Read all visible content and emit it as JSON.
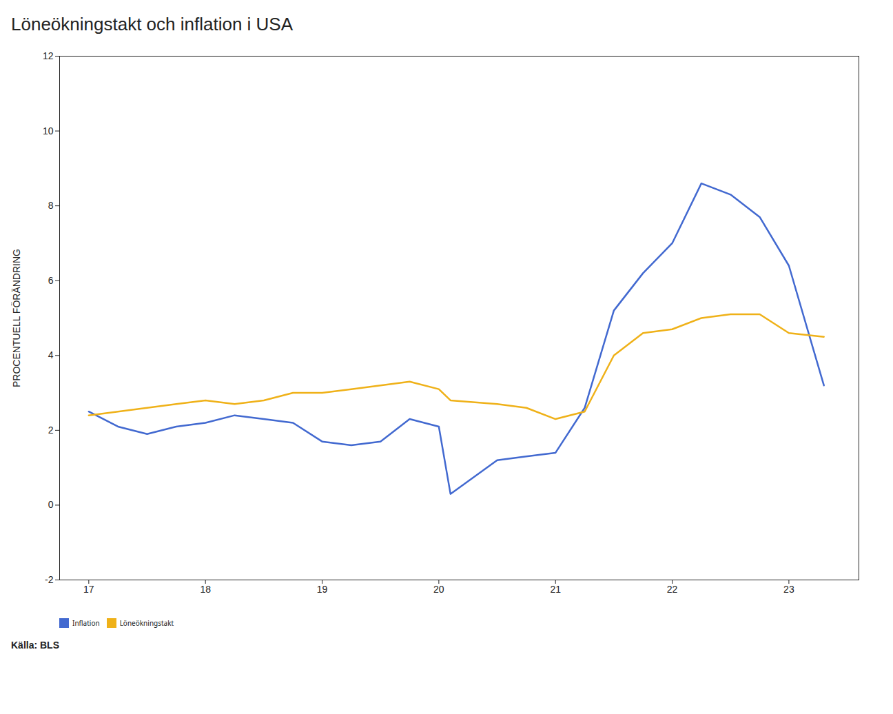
{
  "chart_data": {
    "type": "line",
    "title": "Löneökningstakt och inflation i USA",
    "ylabel": "PROCENTUELL FÖRÄNDRING",
    "annotations": [
      "Källa: BLS"
    ],
    "x": [
      17.0,
      17.25,
      17.5,
      17.75,
      18.0,
      18.25,
      18.5,
      18.75,
      19.0,
      19.25,
      19.5,
      19.75,
      20.0,
      20.1,
      20.5,
      20.75,
      21.0,
      21.25,
      21.5,
      21.75,
      22.0,
      22.25,
      22.5,
      22.75,
      23.0,
      23.3
    ],
    "series": [
      {
        "name": "Inflation",
        "values": [
          2.5,
          2.1,
          1.9,
          2.1,
          2.2,
          2.4,
          2.3,
          2.2,
          1.7,
          1.6,
          1.7,
          2.3,
          2.1,
          0.3,
          1.2,
          1.3,
          1.4,
          2.6,
          5.2,
          6.2,
          7.0,
          8.6,
          8.3,
          7.7,
          6.4,
          3.2
        ]
      },
      {
        "name": "Löneökningstakt",
        "values": [
          2.4,
          2.5,
          2.6,
          2.7,
          2.8,
          2.7,
          2.8,
          3.0,
          3.0,
          3.1,
          3.2,
          3.3,
          3.1,
          2.8,
          2.7,
          2.6,
          2.3,
          2.5,
          4.0,
          4.6,
          4.7,
          5.0,
          5.1,
          5.1,
          4.6,
          4.5
        ]
      }
    ],
    "xlim": [
      16.75,
      23.6
    ],
    "xticks": [
      17,
      18,
      19,
      20,
      21,
      22,
      23
    ],
    "ylim": [
      -2,
      12
    ],
    "yticks": [
      -2,
      0,
      2,
      4,
      6,
      8,
      10,
      12
    ],
    "grid": false,
    "legend": "bottom"
  }
}
